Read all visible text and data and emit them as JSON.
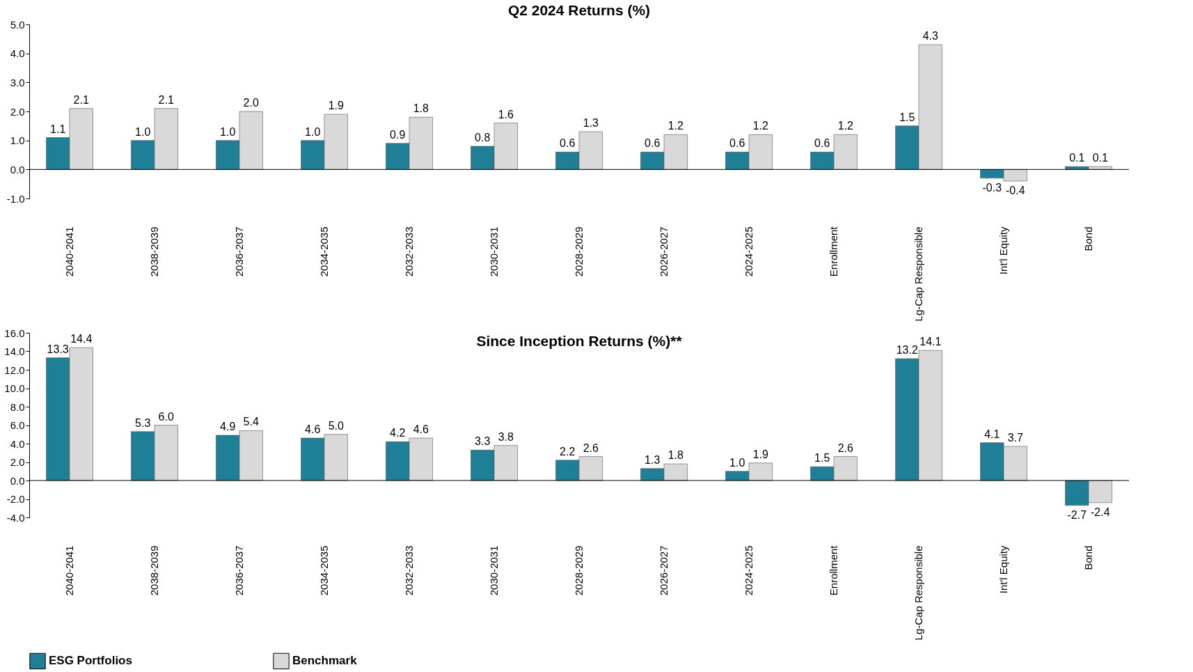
{
  "chart_data": [
    {
      "type": "bar",
      "title": "Q2 2024 Returns (%)",
      "categories": [
        "2040-2041",
        "2038-2039",
        "2036-2037",
        "2034-2035",
        "2032-2033",
        "2030-2031",
        "2028-2029",
        "2026-2027",
        "2024-2025",
        "Enrollment",
        "Lg-Cap Responsible",
        "Int'l Equity",
        "Bond"
      ],
      "series": [
        {
          "name": "ESG Portfolios",
          "color": "#1f7f96",
          "values": [
            1.1,
            1.0,
            1.0,
            1.0,
            0.9,
            0.8,
            0.6,
            0.6,
            0.6,
            0.6,
            1.5,
            -0.3,
            0.1
          ],
          "value_labels": [
            "1.1",
            "1.0",
            "1.0",
            "1.0",
            "0.9",
            "0.8",
            "0.6",
            "0.6",
            "0.6",
            "0.6",
            "1.5",
            "-0.3",
            "0.1"
          ]
        },
        {
          "name": "Benchmark",
          "color": "#d9d9d9",
          "values": [
            2.1,
            2.1,
            2.0,
            1.9,
            1.8,
            1.6,
            1.3,
            1.2,
            1.2,
            1.2,
            4.3,
            -0.4,
            0.1
          ],
          "value_labels": [
            "2.1",
            "2.1",
            "2.0",
            "1.9",
            "1.8",
            "1.6",
            "1.3",
            "1.2",
            "1.2",
            "1.2",
            "4.3",
            "-0.4",
            "0.1"
          ]
        }
      ],
      "ylim": [
        -1,
        5
      ],
      "yticks": [
        {
          "value": -1,
          "label": "-1.0"
        },
        {
          "value": 0,
          "label": "0.0"
        },
        {
          "value": 1,
          "label": "1.0"
        },
        {
          "value": 2,
          "label": "2.0"
        },
        {
          "value": 3,
          "label": "3.0"
        },
        {
          "value": 4,
          "label": "4.0"
        },
        {
          "value": 5,
          "label": "5.0"
        }
      ],
      "legend": "bottom"
    },
    {
      "type": "bar",
      "title": "Since Inception Returns (%)**",
      "categories": [
        "2040-2041",
        "2038-2039",
        "2036-2037",
        "2034-2035",
        "2032-2033",
        "2030-2031",
        "2028-2029",
        "2026-2027",
        "2024-2025",
        "Enrollment",
        "Lg-Cap Responsible",
        "Int'l Equity",
        "Bond"
      ],
      "series": [
        {
          "name": "ESG Portfolios",
          "color": "#1f7f96",
          "values": [
            13.3,
            5.3,
            4.9,
            4.6,
            4.2,
            3.3,
            2.2,
            1.3,
            1.0,
            1.5,
            13.2,
            4.1,
            -2.7
          ],
          "value_labels": [
            "13.3",
            "5.3",
            "4.9",
            "4.6",
            "4.2",
            "3.3",
            "2.2",
            "1.3",
            "1.0",
            "1.5",
            "13.2",
            "4.1",
            "-2.7"
          ]
        },
        {
          "name": "Benchmark",
          "color": "#d9d9d9",
          "values": [
            14.4,
            6.0,
            5.4,
            5.0,
            4.6,
            3.8,
            2.6,
            1.8,
            1.9,
            2.6,
            14.1,
            3.7,
            -2.4
          ],
          "value_labels": [
            "14.4",
            "6.0",
            "5.4",
            "5.0",
            "4.6",
            "3.8",
            "2.6",
            "1.8",
            "1.9",
            "2.6",
            "14.1",
            "3.7",
            "-2.4"
          ]
        }
      ],
      "ylim": [
        -4,
        16
      ],
      "yticks": [
        {
          "value": -4,
          "label": "-4.0"
        },
        {
          "value": -2,
          "label": "-2.0"
        },
        {
          "value": 0,
          "label": "0.0"
        },
        {
          "value": 2,
          "label": "2.0"
        },
        {
          "value": 4,
          "label": "4.0"
        },
        {
          "value": 6,
          "label": "6.0"
        },
        {
          "value": 8,
          "label": "8.0"
        },
        {
          "value": 10,
          "label": "10.0"
        },
        {
          "value": 12,
          "label": "12.0"
        },
        {
          "value": 14,
          "label": "14.0"
        },
        {
          "value": 16,
          "label": "16.0"
        }
      ],
      "legend": "bottom"
    }
  ]
}
